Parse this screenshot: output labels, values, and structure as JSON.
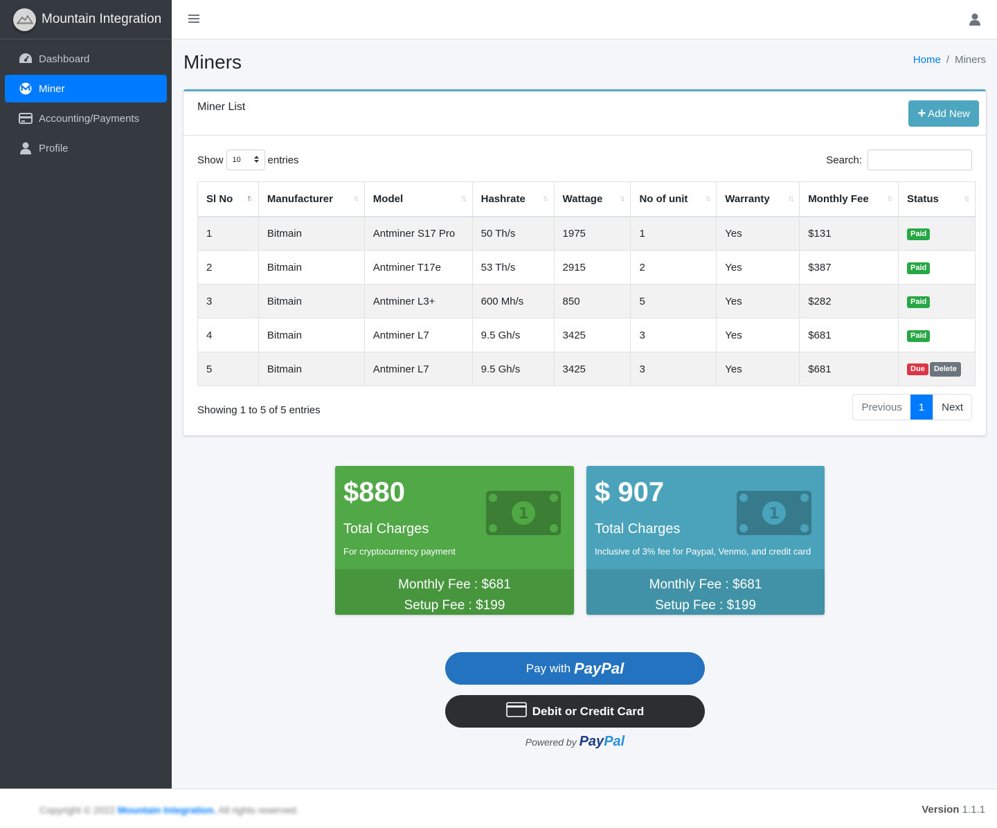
{
  "brand": {
    "name": "Mountain Integration",
    "logo_icon": "mountain-logo"
  },
  "sidebar": {
    "items": [
      {
        "label": "Dashboard",
        "icon": "tachometer-icon",
        "active": false
      },
      {
        "label": "Miner",
        "icon": "monero-icon",
        "active": true
      },
      {
        "label": "Accounting/Payments",
        "icon": "credit-card-icon",
        "active": false
      },
      {
        "label": "Profile",
        "icon": "user-icon",
        "active": false
      }
    ]
  },
  "header": {
    "page_title": "Miners",
    "breadcrumb": {
      "home": "Home",
      "separator": "/",
      "current": "Miners"
    }
  },
  "card": {
    "title": "Miner List",
    "add_button": "Add New",
    "show_label": "Show",
    "page_length": "10",
    "entries_label": "entries",
    "search_label": "Search:",
    "search_value": "",
    "columns": [
      "Sl No",
      "Manufacturer",
      "Model",
      "Hashrate",
      "Wattage",
      "No of unit",
      "Warranty",
      "Monthly Fee",
      "Status"
    ],
    "rows": [
      {
        "sl": "1",
        "manufacturer": "Bitmain",
        "model": "Antminer S17 Pro",
        "hashrate": "50 Th/s",
        "wattage": "1975",
        "units": "1",
        "warranty": "Yes",
        "fee": "$131",
        "status": "Paid"
      },
      {
        "sl": "2",
        "manufacturer": "Bitmain",
        "model": "Antminer T17e",
        "hashrate": "53 Th/s",
        "wattage": "2915",
        "units": "2",
        "warranty": "Yes",
        "fee": "$387",
        "status": "Paid"
      },
      {
        "sl": "3",
        "manufacturer": "Bitmain",
        "model": "Antminer L3+",
        "hashrate": "600 Mh/s",
        "wattage": "850",
        "units": "5",
        "warranty": "Yes",
        "fee": "$282",
        "status": "Paid"
      },
      {
        "sl": "4",
        "manufacturer": "Bitmain",
        "model": "Antminer L7",
        "hashrate": "9.5 Gh/s",
        "wattage": "3425",
        "units": "3",
        "warranty": "Yes",
        "fee": "$681",
        "status": "Paid"
      },
      {
        "sl": "5",
        "manufacturer": "Bitmain",
        "model": "Antminer L7",
        "hashrate": "9.5 Gh/s",
        "wattage": "3425",
        "units": "3",
        "warranty": "Yes",
        "fee": "$681",
        "status": "Due",
        "action": "Delete"
      }
    ],
    "info": "Showing 1 to 5 of 5 entries",
    "pagination": {
      "previous": "Previous",
      "current": "1",
      "next": "Next"
    }
  },
  "summary": [
    {
      "amount": "$880",
      "label": "Total Charges",
      "sub": "For cryptocurrency payment",
      "monthly": "Monthly Fee : $681",
      "setup": "Setup Fee : $199",
      "color": "#50a846"
    },
    {
      "amount": "$ 907",
      "label": "Total Charges",
      "sub": "Inclusive of 3% fee for Paypal, Venmo, and credit card",
      "monthly": "Monthly Fee : $681",
      "setup": "Setup Fee : $199",
      "color": "#4aa3ba"
    }
  ],
  "payment": {
    "paypal_prefix": "Pay with",
    "paypal_word": "PayPal",
    "card_label": "Debit or Credit Card",
    "powered_by": "Powered by",
    "powered_brand_pay": "Pay",
    "powered_brand_pal": "Pal"
  },
  "footer": {
    "copyright_prefix": "Copyright © 2022",
    "copyright_brand": "Mountain Integration.",
    "copyright_suffix": "All rights reserved.",
    "version_label": "Version",
    "version_value": "1.1.1"
  },
  "colors": {
    "sidebar": "#343a40",
    "primary": "#007bff",
    "accent": "#4ca6bf",
    "paid": "#28a745",
    "due": "#dc3545"
  }
}
